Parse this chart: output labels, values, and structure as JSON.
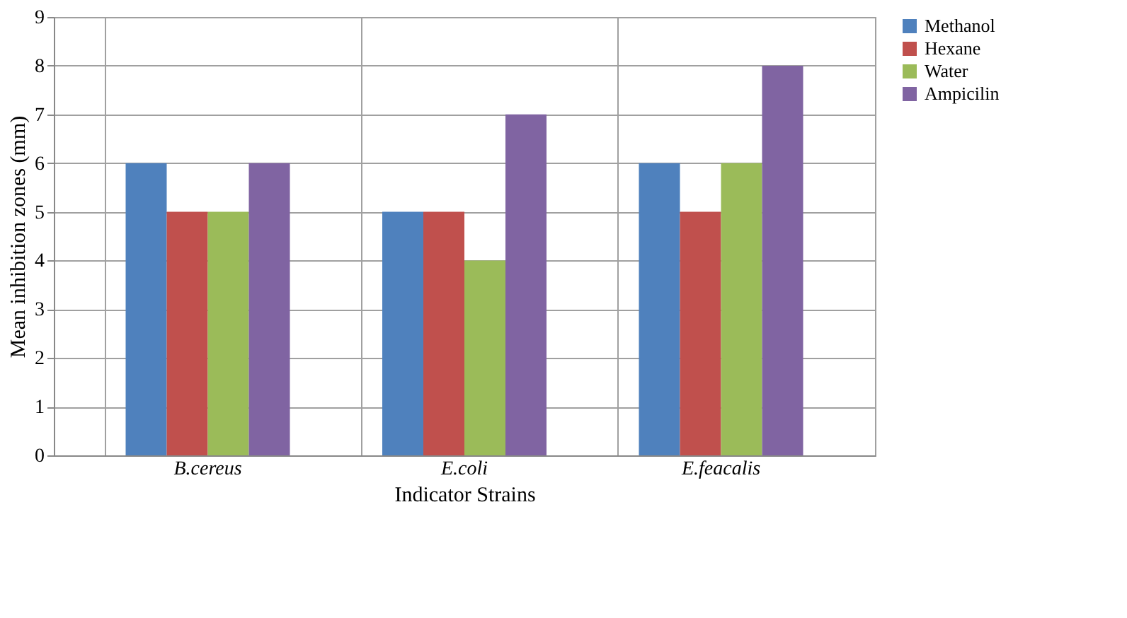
{
  "chart_data": {
    "type": "bar",
    "categories": [
      "B.cereus",
      "E.coli",
      "E.feacalis"
    ],
    "series": [
      {
        "name": "Methanol",
        "color": "#4f81bd",
        "values": [
          6,
          5,
          6
        ]
      },
      {
        "name": "Hexane",
        "color": "#c0504d",
        "values": [
          5,
          5,
          5
        ]
      },
      {
        "name": "Water",
        "color": "#9bbb59",
        "values": [
          5,
          4,
          6
        ]
      },
      {
        "name": "Ampicilin",
        "color": "#8064a2",
        "values": [
          6,
          7,
          8
        ]
      }
    ],
    "xlabel": "Indicator Strains",
    "ylabel": "Mean inhibition zones  (mm)",
    "ylim": [
      0,
      9
    ],
    "yticks": [
      0,
      1,
      2,
      3,
      4,
      5,
      6,
      7,
      8,
      9
    ],
    "grid": true,
    "legend": "right"
  }
}
